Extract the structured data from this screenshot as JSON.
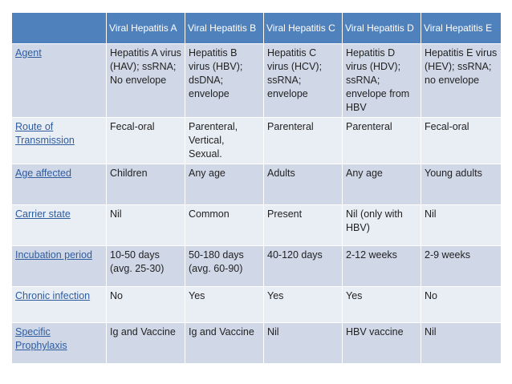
{
  "table": {
    "headers": [
      "",
      "Viral Hepatitis A",
      "Viral Hepatitis B",
      "Viral Hepatitis C",
      "Viral Hepatitis D",
      "Viral Hepatitis E"
    ],
    "rows": [
      {
        "label": "Agent",
        "cells": [
          "Hepatitis A virus (HAV); ssRNA; No envelope",
          "Hepatitis B virus (HBV); dsDNA; envelope",
          "Hepatitis C virus (HCV); ssRNA; envelope",
          "Hepatitis D virus (HDV); ssRNA; envelope from HBV",
          "Hepatitis E virus (HEV); ssRNA; no envelope"
        ]
      },
      {
        "label": "Route of Transmission",
        "cells": [
          "Fecal-oral",
          "Parenteral, Vertical, Sexual.",
          "Parenteral",
          "Parenteral",
          "Fecal-oral"
        ]
      },
      {
        "label": "Age affected",
        "cells": [
          "Children",
          "Any age",
          "Adults",
          "Any age",
          "Young adults"
        ]
      },
      {
        "label": "Carrier state",
        "cells": [
          "Nil",
          "Common",
          "Present",
          "Nil (only with HBV)",
          "Nil"
        ]
      },
      {
        "label": "Incubation period",
        "cells": [
          "10-50 days (avg. 25-30)",
          "50-180 days (avg. 60-90)",
          "40-120 days",
          "2-12 weeks",
          "2-9 weeks"
        ]
      },
      {
        "label": "Chronic infection",
        "cells": [
          "No",
          "Yes",
          "Yes",
          "Yes",
          "No"
        ]
      },
      {
        "label": "Specific Prophylaxis",
        "cells": [
          "Ig and Vaccine",
          "Ig and Vaccine",
          "Nil",
          "HBV vaccine",
          "Nil"
        ]
      }
    ]
  },
  "colors": {
    "header_bg": "#4f81bd",
    "row_odd": "#d0d8e8",
    "row_even": "#e9edf4",
    "row_label": "#2e5c9e"
  }
}
